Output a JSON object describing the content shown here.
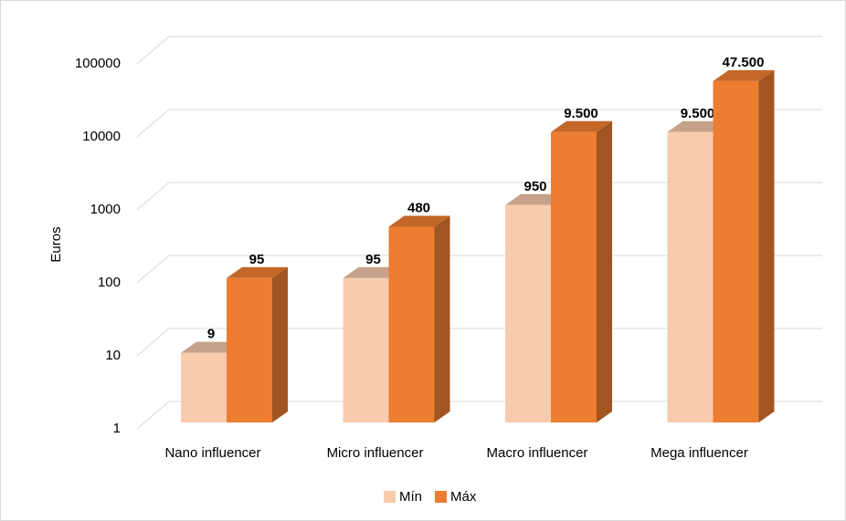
{
  "chart_data": {
    "type": "bar3d",
    "categories": [
      "Nano influencer",
      "Micro influencer",
      "Macro influencer",
      "Mega influencer"
    ],
    "series": [
      {
        "name": "Mín",
        "color": "#f8cbad",
        "values": [
          9,
          95,
          950,
          9500
        ],
        "value_labels": [
          "9",
          "95",
          "950",
          "9.500"
        ]
      },
      {
        "name": "Máx",
        "color": "#ed7d31",
        "values": [
          95,
          480,
          9500,
          47500
        ],
        "value_labels": [
          "95",
          "480",
          "9.500",
          "47.500"
        ]
      }
    ],
    "y_label": "Euros",
    "ylim": [
      1,
      100000
    ],
    "yticks": [
      1,
      10,
      100,
      1000,
      10000,
      100000
    ],
    "log_scale": true,
    "grid": true,
    "legend": "bottom"
  }
}
